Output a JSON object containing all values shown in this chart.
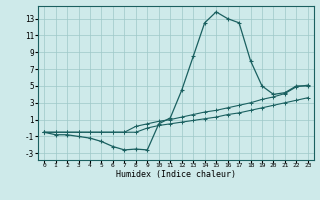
{
  "xlabel": "Humidex (Indice chaleur)",
  "background_color": "#ceeaea",
  "grid_color": "#9ec8c8",
  "line_color": "#1a6060",
  "xlim": [
    -0.5,
    23.5
  ],
  "ylim": [
    -3.8,
    14.5
  ],
  "xticks": [
    0,
    1,
    2,
    3,
    4,
    5,
    6,
    7,
    8,
    9,
    10,
    11,
    12,
    13,
    14,
    15,
    16,
    17,
    18,
    19,
    20,
    21,
    22,
    23
  ],
  "yticks": [
    -3,
    -1,
    1,
    3,
    5,
    7,
    9,
    11,
    13
  ],
  "line1_x": [
    0,
    1,
    2,
    3,
    4,
    5,
    6,
    7,
    8,
    9,
    10,
    11,
    12,
    13,
    14,
    15,
    16,
    17,
    18,
    19,
    20,
    21,
    22,
    23
  ],
  "line1_y": [
    -0.5,
    -0.8,
    -0.8,
    -1.0,
    -1.2,
    -1.6,
    -2.2,
    -2.6,
    -2.5,
    -2.6,
    0.5,
    1.2,
    4.5,
    8.5,
    12.5,
    13.8,
    13.0,
    12.5,
    8.0,
    5.0,
    4.0,
    4.2,
    5.0,
    5.0
  ],
  "line2_x": [
    0,
    1,
    2,
    3,
    4,
    5,
    6,
    7,
    8,
    9,
    10,
    11,
    12,
    13,
    14,
    15,
    16,
    17,
    18,
    19,
    20,
    21,
    22,
    23
  ],
  "line2_y": [
    -0.5,
    -0.5,
    -0.5,
    -0.5,
    -0.5,
    -0.5,
    -0.5,
    -0.5,
    -0.5,
    0.0,
    0.3,
    0.5,
    0.7,
    0.9,
    1.1,
    1.3,
    1.6,
    1.8,
    2.1,
    2.4,
    2.7,
    3.0,
    3.3,
    3.6
  ],
  "line3_x": [
    0,
    1,
    2,
    3,
    4,
    5,
    6,
    7,
    8,
    9,
    10,
    11,
    12,
    13,
    14,
    15,
    16,
    17,
    18,
    19,
    20,
    21,
    22,
    23
  ],
  "line3_y": [
    -0.5,
    -0.5,
    -0.5,
    -0.5,
    -0.5,
    -0.5,
    -0.5,
    -0.5,
    0.2,
    0.5,
    0.8,
    1.0,
    1.3,
    1.6,
    1.9,
    2.1,
    2.4,
    2.7,
    3.0,
    3.4,
    3.7,
    4.1,
    4.9,
    5.1
  ]
}
